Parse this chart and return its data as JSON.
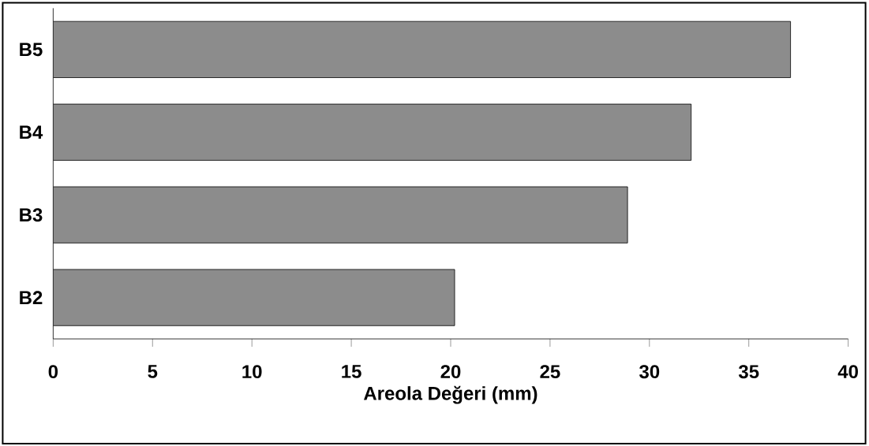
{
  "chart_data": {
    "type": "bar",
    "orientation": "horizontal",
    "xlabel": "Areola Değeri (mm)",
    "categories": [
      "B5",
      "B4",
      "B3",
      "B2"
    ],
    "values": [
      37.1,
      32.1,
      28.9,
      20.2
    ],
    "color": "#8c8c8c",
    "xlim": [
      0,
      40
    ],
    "xticks": [
      0,
      5,
      10,
      15,
      20,
      25,
      30,
      35,
      40
    ],
    "grid": false
  }
}
